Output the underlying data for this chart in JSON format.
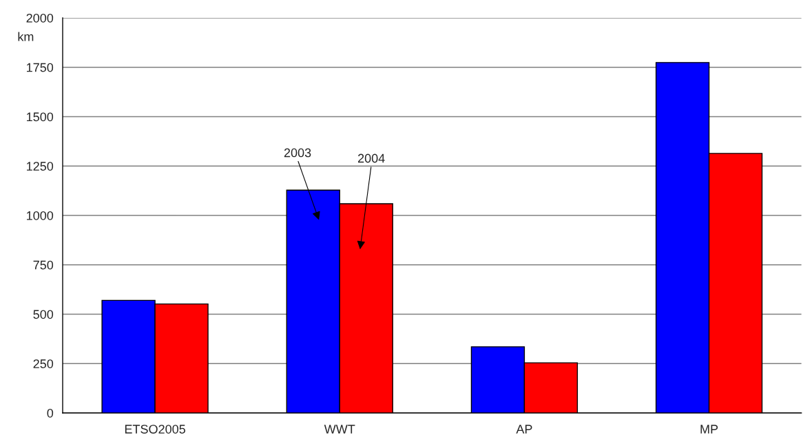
{
  "chart_data": {
    "type": "bar",
    "ylabel": "km",
    "categories": [
      "ETSO2005",
      "WWT",
      "AP",
      "MP"
    ],
    "series": [
      {
        "name": "2003",
        "color": "#0000ff",
        "values": [
          570,
          1128,
          335,
          1774
        ]
      },
      {
        "name": "2004",
        "color": "#ff0000",
        "values": [
          552,
          1059,
          254,
          1314
        ]
      }
    ],
    "ylim": [
      0,
      2000
    ],
    "yticks": [
      0,
      250,
      500,
      750,
      1000,
      1250,
      1500,
      1750,
      2000
    ],
    "grid": "y",
    "legend": false
  }
}
